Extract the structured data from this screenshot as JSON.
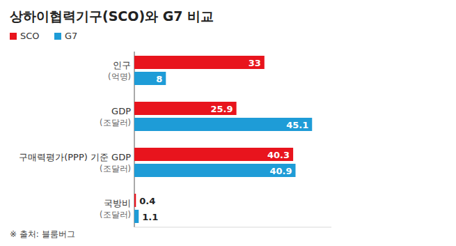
{
  "chart_data": {
    "type": "bar",
    "orientation": "horizontal",
    "title": "상하이협력기구(SCO)와 G7 비교",
    "categories": [
      "인구\n(억명)",
      "GDP\n(조달러)",
      "구매력평가(PPP) 기준 GDP\n(조달러)",
      "국방비\n(조달러)"
    ],
    "series": [
      {
        "name": "SCO",
        "color": "#e8141d",
        "values": [
          33,
          25.9,
          40.3,
          0.4
        ]
      },
      {
        "name": "G7",
        "color": "#1e9cd7",
        "values": [
          8,
          45.1,
          40.9,
          1.1
        ]
      }
    ],
    "xlim": [
      0,
      50
    ],
    "data_labels": true,
    "tick_labels": false,
    "legend": "top-left",
    "grid": false,
    "note": "※ 출처: 블룸버그"
  }
}
